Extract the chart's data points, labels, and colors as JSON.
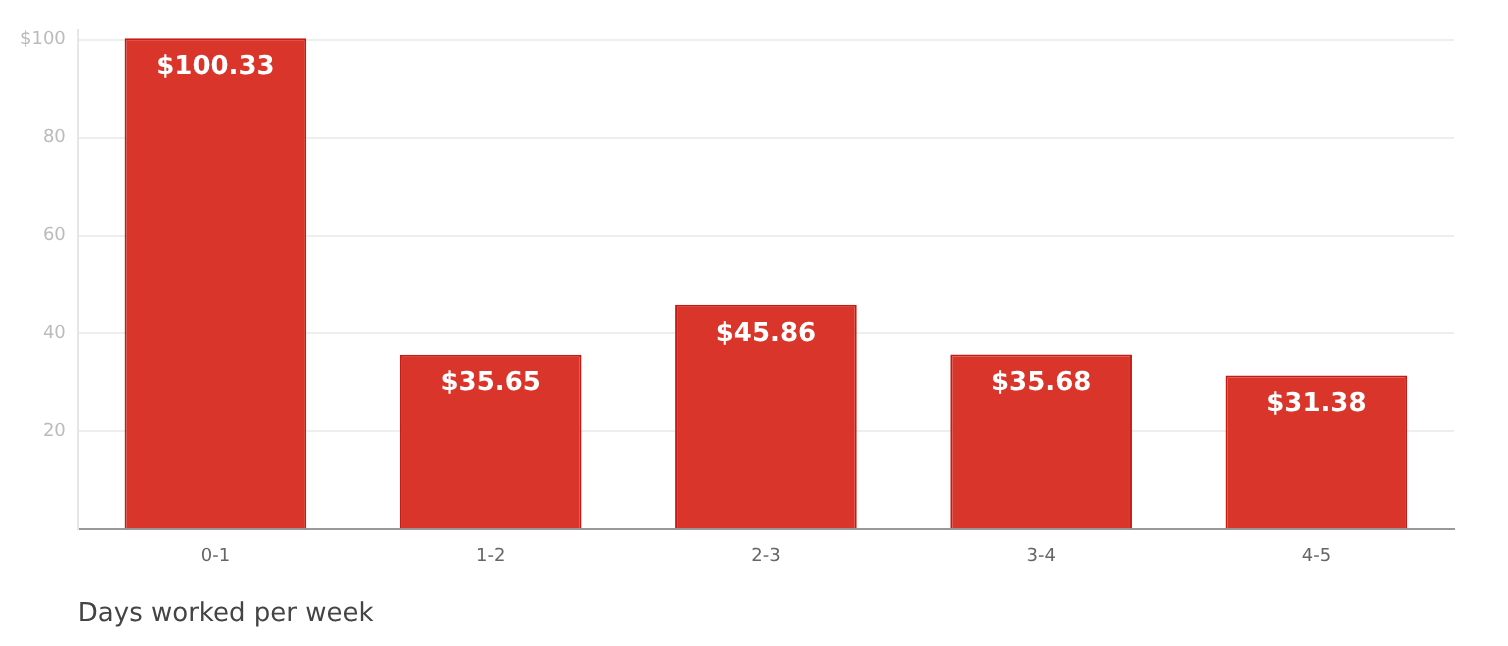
{
  "chart_data": {
    "type": "bar",
    "xlabel": "Days worked per week",
    "categories": [
      "0-1",
      "1-2",
      "2-3",
      "3-4",
      "4-5"
    ],
    "values": [
      100.33,
      35.65,
      45.86,
      35.68,
      31.38
    ],
    "value_labels": [
      "$100.33",
      "$35.65",
      "$45.86",
      "$35.68",
      "$31.38"
    ],
    "color": "#d9352a",
    "ylim": [
      0,
      102
    ],
    "yticks": [
      {
        "value": 0,
        "label": null
      },
      20,
      40,
      60,
      80,
      {
        "value": 100,
        "label": "$100"
      }
    ],
    "grid": "y",
    "legend": false
  }
}
